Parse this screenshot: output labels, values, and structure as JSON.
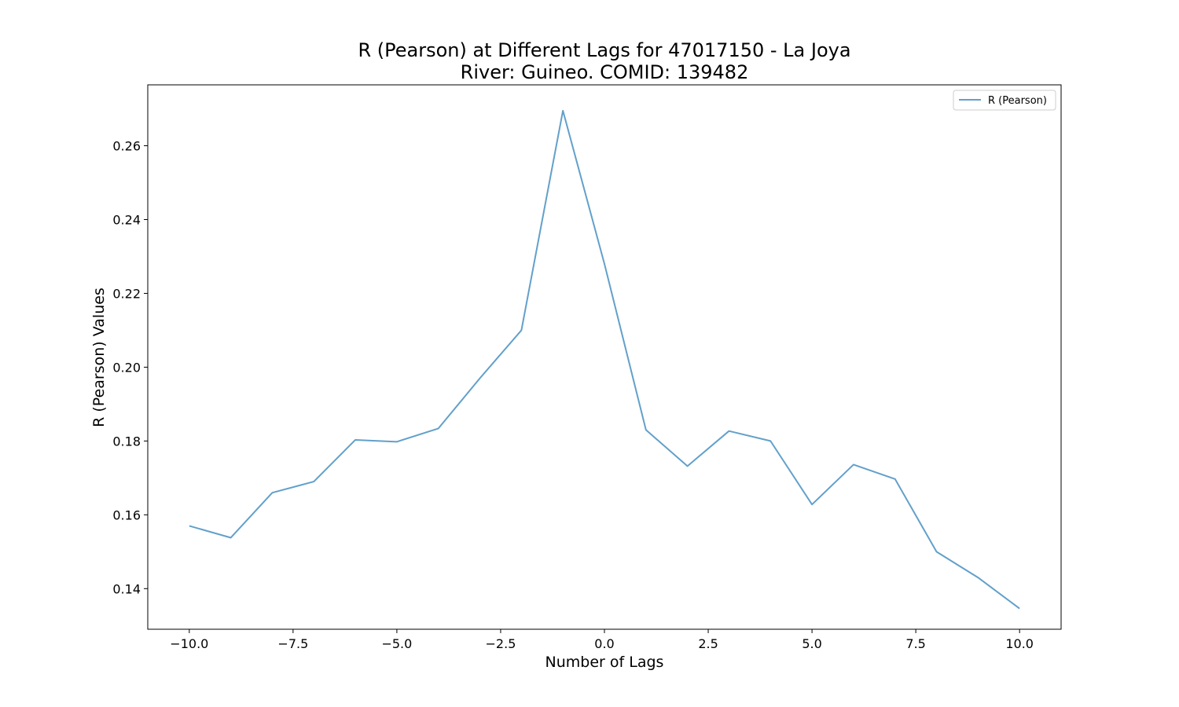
{
  "chart_data": {
    "type": "line",
    "title": "R (Pearson) at Different Lags for 47017150 - La Joya",
    "subtitle": "River: Guineo. COMID: 139482",
    "xlabel": "Number of Lags",
    "ylabel": "R (Pearson) Values",
    "xlim": [
      -11,
      11
    ],
    "ylim": [
      0.129,
      0.2765
    ],
    "x_ticks": [
      -10,
      -7.5,
      -5,
      -2.5,
      0,
      2.5,
      5,
      7.5,
      10
    ],
    "x_tick_labels": [
      "−10.0",
      "−7.5",
      "−5.0",
      "−2.5",
      "0.0",
      "2.5",
      "5.0",
      "7.5",
      "10.0"
    ],
    "y_ticks": [
      0.14,
      0.16,
      0.18,
      0.2,
      0.22,
      0.24,
      0.26
    ],
    "y_tick_labels": [
      "0.14",
      "0.16",
      "0.18",
      "0.20",
      "0.22",
      "0.24",
      "0.26"
    ],
    "grid": false,
    "legend_position": "top-right",
    "series": [
      {
        "name": "R (Pearson)",
        "color": "#1f77b4",
        "x": [
          -10,
          -9,
          -8,
          -7,
          -6,
          -5,
          -4,
          -3,
          -2,
          -1,
          0,
          1,
          2,
          3,
          4,
          5,
          6,
          7,
          8,
          9,
          10
        ],
        "values": [
          0.157,
          0.1538,
          0.166,
          0.169,
          0.1803,
          0.1798,
          0.1834,
          0.197,
          0.21,
          0.2695,
          0.228,
          0.183,
          0.1732,
          0.1827,
          0.18,
          0.1628,
          0.1736,
          0.1697,
          0.15,
          0.143,
          0.1346
        ]
      }
    ]
  }
}
